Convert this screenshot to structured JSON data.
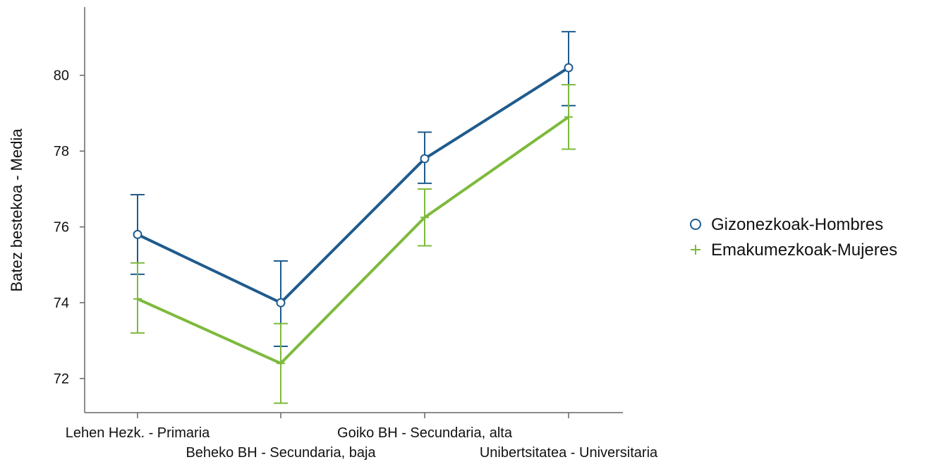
{
  "chart_data": {
    "type": "line",
    "title": "",
    "xlabel": "",
    "ylabel": "Batez bestekoa - Media",
    "categories": [
      "Lehen Hezk. - Primaria",
      "Beheko BH - Secundaria, baja",
      "Goiko BH - Secundaria, alta",
      "Unibertsitatea - Universitaria"
    ],
    "ylim": [
      71.1,
      81.8
    ],
    "yticks": [
      72,
      74,
      76,
      78,
      80
    ],
    "grid": false,
    "legend_position": "right",
    "series": [
      {
        "name": "Gizonezkoak-Hombres",
        "color": "#1f5b8e",
        "marker": "circle",
        "values": [
          75.8,
          74.0,
          77.8,
          80.2
        ],
        "ci_low": [
          74.75,
          72.85,
          77.15,
          79.2
        ],
        "ci_high": [
          76.85,
          75.1,
          78.5,
          81.15
        ]
      },
      {
        "name": "Emakumezkoak-Mujeres",
        "color": "#7dba3c",
        "marker": "plus",
        "values": [
          74.1,
          72.4,
          76.25,
          78.9
        ],
        "ci_low": [
          73.2,
          71.35,
          75.5,
          78.05
        ],
        "ci_high": [
          75.05,
          73.45,
          77.0,
          79.75
        ]
      }
    ]
  }
}
